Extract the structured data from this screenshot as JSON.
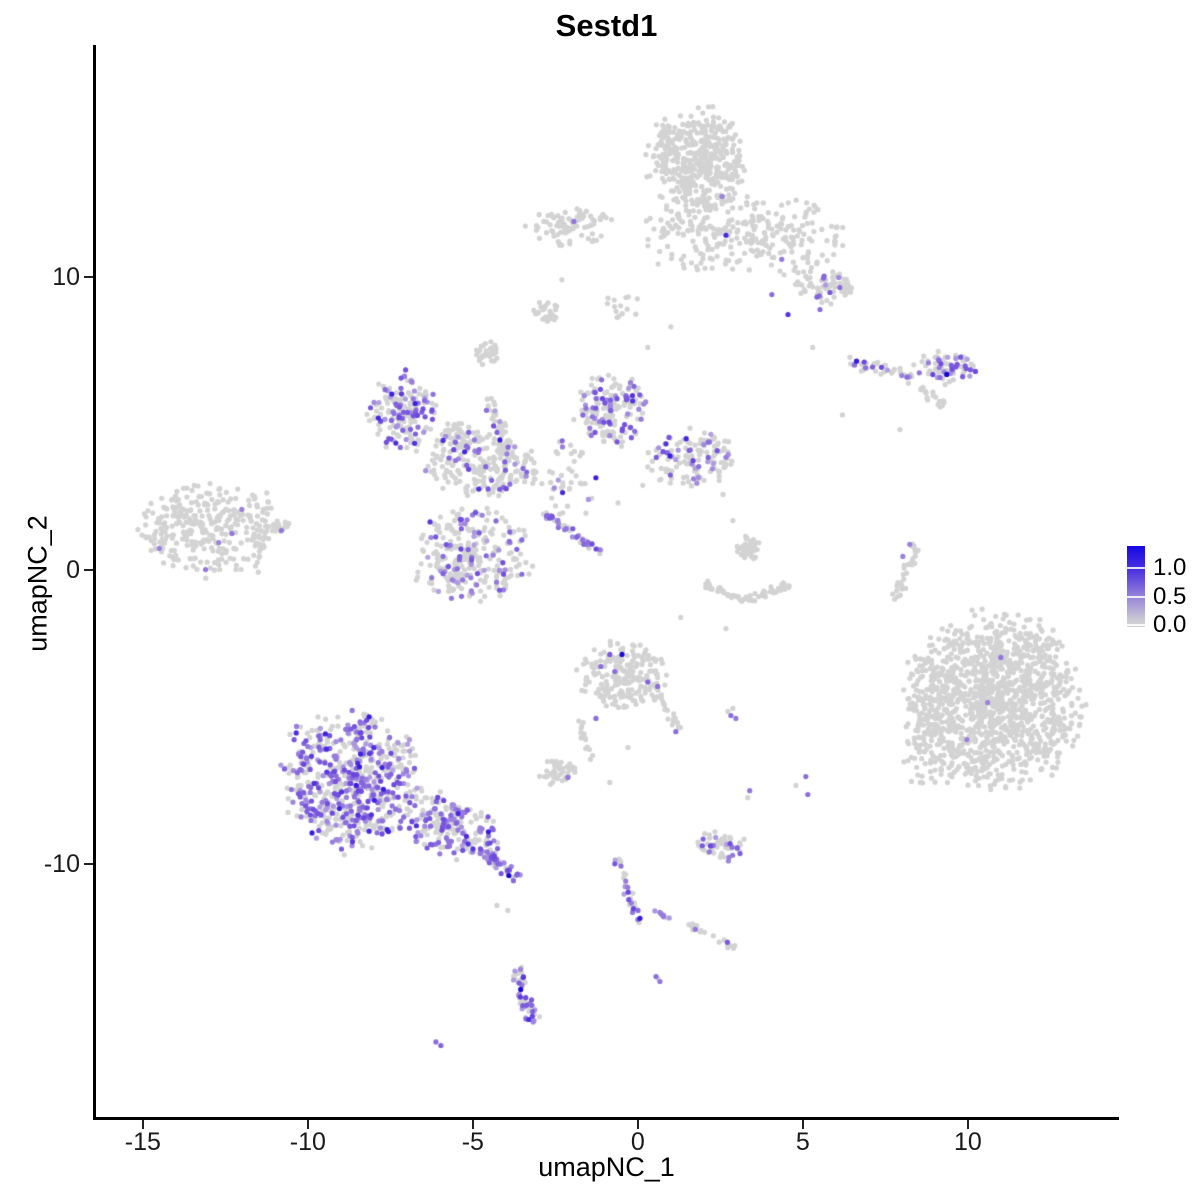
{
  "chart_data": {
    "type": "scatter",
    "title": "Sestd1",
    "xlabel": "umapNC_1",
    "ylabel": "umapNC_2",
    "x_ticks": [
      -15,
      -10,
      -5,
      0,
      5,
      10
    ],
    "y_ticks": [
      -10,
      0,
      10
    ],
    "xlim": [
      -16.45,
      14.55
    ],
    "ylim": [
      -18.65,
      17.9
    ],
    "grid": false,
    "legend": {
      "position": "right",
      "ticks": [
        {
          "label": "1.0",
          "value": 1.0
        },
        {
          "label": "0.5",
          "value": 0.5
        },
        {
          "label": "0.0",
          "value": 0.0
        }
      ]
    },
    "colors": {
      "low": "#D3D3D3",
      "mid": "#8A70D8",
      "high": "#1408E2",
      "background": "#FFFFFF",
      "axis": "#000000"
    },
    "point_radius_px": 2.6,
    "clusters": [
      {
        "name": "top-main",
        "t": "blob",
        "x": 1.82,
        "y": 13.97,
        "rx": 1.45,
        "ry": 1.7,
        "n": 430,
        "f": 0.0
      },
      {
        "name": "top-spread",
        "t": "blob",
        "x": 2.33,
        "y": 11.45,
        "rx": 2.2,
        "ry": 1.35,
        "n": 190,
        "f": 0.0
      },
      {
        "name": "top-left-small",
        "t": "blob",
        "x": -2.0,
        "y": 11.69,
        "rx": 1.35,
        "ry": 0.62,
        "n": 85,
        "f": 0.0
      },
      {
        "name": "top-right-descend",
        "t": "blob",
        "x": 4.76,
        "y": 11.28,
        "rx": 1.5,
        "ry": 1.3,
        "n": 105,
        "f": 0.0
      },
      {
        "name": "top-right-blob",
        "t": "blob",
        "x": 5.67,
        "y": 9.64,
        "rx": 0.95,
        "ry": 0.62,
        "n": 62,
        "f": 0.04
      },
      {
        "name": "midright-arm",
        "t": "strand",
        "x": 7.42,
        "y": 6.85,
        "rx": 1.0,
        "ry": 0.26,
        "a": -17,
        "n": 42,
        "f": 0.3
      },
      {
        "name": "midright-blob",
        "t": "blob",
        "x": 9.3,
        "y": 6.9,
        "rx": 0.95,
        "ry": 0.55,
        "n": 72,
        "f": 0.28
      },
      {
        "name": "midright-tail",
        "t": "strand",
        "x": 8.85,
        "y": 5.96,
        "rx": 0.55,
        "ry": 0.18,
        "a": -36,
        "n": 20,
        "f": 0.0
      },
      {
        "name": "net-nw-wing",
        "t": "blob",
        "x": -7.15,
        "y": 5.42,
        "rx": 1.05,
        "ry": 1.3,
        "n": 170,
        "f": 0.4
      },
      {
        "name": "net-nw-east",
        "t": "blob",
        "x": -5.45,
        "y": 4.53,
        "rx": 0.85,
        "ry": 0.6,
        "n": 55,
        "f": 0.15
      },
      {
        "name": "net-vstrand",
        "t": "strand",
        "x": -4.18,
        "y": 4.8,
        "rx": 1.1,
        "ry": 0.28,
        "a": -75,
        "n": 50,
        "f": 0.18
      },
      {
        "name": "net-central",
        "t": "blob",
        "x": -4.73,
        "y": 3.51,
        "rx": 1.65,
        "ry": 1.0,
        "n": 190,
        "f": 0.12
      },
      {
        "name": "net-north-fan",
        "t": "blob",
        "x": -0.79,
        "y": 5.49,
        "rx": 1.15,
        "ry": 1.2,
        "n": 165,
        "f": 0.28
      },
      {
        "name": "net-east-arm",
        "t": "blob",
        "x": 1.64,
        "y": 3.78,
        "rx": 1.3,
        "ry": 0.95,
        "n": 135,
        "f": 0.22
      },
      {
        "name": "net-sw-lobe",
        "t": "blob",
        "x": -5.03,
        "y": 0.51,
        "rx": 1.75,
        "ry": 1.6,
        "n": 290,
        "f": 0.22
      },
      {
        "name": "net-se-strand",
        "t": "strand",
        "x": -2.0,
        "y": 1.29,
        "rx": 1.1,
        "ry": 0.16,
        "a": -38,
        "n": 48,
        "f": 0.45
      },
      {
        "name": "net-scatter",
        "t": "blob",
        "x": -2.21,
        "y": 3.17,
        "rx": 1.25,
        "ry": 1.35,
        "n": 50,
        "f": 0.08
      },
      {
        "name": "left-cluster",
        "t": "blob",
        "x": -12.91,
        "y": 1.4,
        "rx": 2.15,
        "ry": 1.55,
        "n": 330,
        "f": 0.0
      },
      {
        "name": "left-arm",
        "t": "strand",
        "x": -10.85,
        "y": 1.45,
        "rx": 0.5,
        "ry": 0.12,
        "a": 7,
        "n": 12,
        "f": 0.0
      },
      {
        "name": "right-narrow",
        "t": "strand",
        "x": 8.18,
        "y": 0.03,
        "rx": 1.05,
        "ry": 0.22,
        "a": 72,
        "n": 30,
        "f": 0.0
      },
      {
        "name": "bigright-main",
        "t": "blob",
        "x": 10.82,
        "y": -4.46,
        "rx": 2.55,
        "ry": 2.85,
        "n": 1250,
        "f": 0.0
      },
      {
        "name": "bigright-fringe",
        "t": "blob",
        "x": 8.79,
        "y": -5.35,
        "rx": 0.85,
        "ry": 1.95,
        "n": 95,
        "f": 0.0
      },
      {
        "name": "centerbottom",
        "t": "blob",
        "x": -0.39,
        "y": -3.58,
        "rx": 1.3,
        "ry": 1.15,
        "n": 200,
        "f": 0.0
      },
      {
        "name": "centerbottom-tail",
        "t": "strand",
        "x": 0.91,
        "y": -4.8,
        "rx": 0.6,
        "ry": 0.16,
        "a": -59,
        "n": 20,
        "f": 0.0
      },
      {
        "name": "centerbottom-blob2",
        "t": "blob",
        "x": -2.42,
        "y": -6.88,
        "rx": 0.62,
        "ry": 0.45,
        "n": 42,
        "f": 0.0
      },
      {
        "name": "centerbottom-strand2",
        "t": "strand",
        "x": -1.61,
        "y": -5.66,
        "rx": 0.75,
        "ry": 0.13,
        "a": -75,
        "n": 15,
        "f": 0.0
      },
      {
        "name": "bottomleft-main",
        "t": "blob",
        "x": -8.7,
        "y": -7.12,
        "rx": 2.05,
        "ry": 2.3,
        "n": 640,
        "f": 0.45
      },
      {
        "name": "bottomleft-east",
        "t": "blob",
        "x": -5.7,
        "y": -8.69,
        "rx": 1.6,
        "ry": 0.95,
        "a": -25,
        "n": 215,
        "f": 0.38
      },
      {
        "name": "bottomleft-tail",
        "t": "strand",
        "x": -4.21,
        "y": -9.98,
        "rx": 0.8,
        "ry": 0.22,
        "a": -40,
        "n": 48,
        "f": 0.55
      },
      {
        "name": "bottom-small",
        "t": "blob",
        "x": 2.48,
        "y": -9.37,
        "rx": 0.78,
        "ry": 0.5,
        "n": 55,
        "f": 0.28
      },
      {
        "name": "strand-vert",
        "t": "strand",
        "x": -0.3,
        "y": -10.87,
        "rx": 1.1,
        "ry": 0.18,
        "a": -75,
        "n": 30,
        "f": 0.45
      },
      {
        "name": "strand-horiz",
        "t": "strand",
        "x": 0.73,
        "y": -11.75,
        "rx": 0.33,
        "ry": 0.1,
        "a": -27,
        "n": 8,
        "f": 0.7
      },
      {
        "name": "strand-diag",
        "t": "strand",
        "x": 2.21,
        "y": -12.47,
        "rx": 0.8,
        "ry": 0.16,
        "a": -28,
        "n": 26,
        "f": 0.2
      },
      {
        "name": "bottom-vert",
        "t": "strand",
        "x": -3.45,
        "y": -14.41,
        "rx": 0.95,
        "ry": 0.28,
        "a": -77,
        "n": 46,
        "f": 0.5
      },
      {
        "name": "gray-blob-a",
        "t": "blob",
        "x": -2.82,
        "y": 8.82,
        "rx": 0.4,
        "ry": 0.35,
        "n": 26,
        "f": 0.0
      },
      {
        "name": "gray-blob-b",
        "t": "blob",
        "x": -4.52,
        "y": 7.39,
        "rx": 0.38,
        "ry": 0.5,
        "n": 30,
        "f": 0.0
      },
      {
        "name": "gray-trail",
        "t": "blob",
        "x": -0.55,
        "y": 9.06,
        "rx": 0.6,
        "ry": 0.45,
        "n": 14,
        "f": 0.0
      },
      {
        "name": "smile-blob",
        "t": "blob",
        "x": 3.27,
        "y": 0.75,
        "rx": 0.45,
        "ry": 0.4,
        "n": 40,
        "f": 0.0
      },
      {
        "name": "smile-arc-left",
        "t": "strand",
        "x": 2.64,
        "y": -0.75,
        "rx": 0.7,
        "ry": 0.16,
        "a": -25,
        "n": 34,
        "f": 0.0
      },
      {
        "name": "smile-arc-right",
        "t": "strand",
        "x": 3.9,
        "y": -0.78,
        "rx": 0.7,
        "ry": 0.16,
        "a": 22,
        "n": 34,
        "f": 0.0
      }
    ],
    "highlight_points": [
      {
        "x": 2.55,
        "y": 12.74,
        "v": 0.5
      },
      {
        "x": 2.67,
        "y": 11.42,
        "v": 0.95
      },
      {
        "x": -1.94,
        "y": 11.89,
        "v": 0.55
      },
      {
        "x": 4.36,
        "y": 10.6,
        "v": 0.55
      },
      {
        "x": 4.06,
        "y": 9.4,
        "v": 0.6
      },
      {
        "x": 4.55,
        "y": 8.72,
        "v": 0.9
      },
      {
        "x": 5.52,
        "y": 8.89,
        "v": 0.6
      },
      {
        "x": 5.82,
        "y": 9.47,
        "v": 0.7
      },
      {
        "x": 6.12,
        "y": 9.64,
        "v": 0.6
      },
      {
        "x": 9.36,
        "y": 6.68,
        "v": 1.35
      },
      {
        "x": -14.5,
        "y": 0.75,
        "v": 0.5
      },
      {
        "x": -13.1,
        "y": 0.03,
        "v": 0.55
      },
      {
        "x": -12.7,
        "y": 0.95,
        "v": 0.5
      },
      {
        "x": -12.3,
        "y": 1.26,
        "v": 0.55
      },
      {
        "x": -12.0,
        "y": 2.08,
        "v": 0.5
      },
      {
        "x": -10.8,
        "y": 1.36,
        "v": 0.55
      },
      {
        "x": 8.24,
        "y": 0.89,
        "v": 0.5
      },
      {
        "x": 8.03,
        "y": 0.48,
        "v": 0.5
      },
      {
        "x": 11.0,
        "y": -2.96,
        "v": 0.55
      },
      {
        "x": 10.6,
        "y": -4.5,
        "v": 0.5
      },
      {
        "x": 9.97,
        "y": -5.76,
        "v": 0.5
      },
      {
        "x": -0.48,
        "y": -2.86,
        "v": 1.3
      },
      {
        "x": -0.85,
        "y": -2.86,
        "v": 0.7
      },
      {
        "x": -1.12,
        "y": -3.27,
        "v": 0.6
      },
      {
        "x": -0.7,
        "y": -3.44,
        "v": 0.6
      },
      {
        "x": 0.3,
        "y": -3.8,
        "v": 0.65
      },
      {
        "x": 0.6,
        "y": -3.95,
        "v": 0.6
      },
      {
        "x": 1.15,
        "y": -5.49,
        "v": 0.6
      },
      {
        "x": -2.12,
        "y": -7.05,
        "v": 0.55
      },
      {
        "x": -1.27,
        "y": -5.04,
        "v": 0.6
      },
      {
        "x": -3.91,
        "y": -10.39,
        "v": 1.35
      },
      {
        "x": -3.55,
        "y": -14.27,
        "v": 1.3
      },
      {
        "x": 5.09,
        "y": -7.02,
        "v": 0.6
      },
      {
        "x": 5.15,
        "y": -7.63,
        "v": 0.6
      },
      {
        "x": 3.39,
        "y": -7.5,
        "v": 0.55
      },
      {
        "x": 2.82,
        "y": -4.94,
        "v": 0.6
      },
      {
        "x": 2.97,
        "y": -5.04,
        "v": 0.55
      },
      {
        "x": 0.55,
        "y": -13.83,
        "v": 0.6
      },
      {
        "x": 0.67,
        "y": -14.0,
        "v": 0.55
      },
      {
        "x": -6.12,
        "y": -16.06,
        "v": 0.6
      },
      {
        "x": -5.97,
        "y": -16.18,
        "v": 0.65
      }
    ],
    "single_gray_points": [
      {
        "x": 4.79,
        "y": -7.32
      },
      {
        "x": 3.33,
        "y": -7.74
      },
      {
        "x": 2.73,
        "y": -4.8
      },
      {
        "x": 2.88,
        "y": -4.7
      },
      {
        "x": 7.94,
        "y": 4.8
      },
      {
        "x": -4.27,
        "y": -11.41
      },
      {
        "x": -3.94,
        "y": -11.58
      },
      {
        "x": -0.85,
        "y": -7.22
      },
      {
        "x": -0.3,
        "y": -6.03
      },
      {
        "x": 1.3,
        "y": -1.6
      },
      {
        "x": 2.58,
        "y": 2.59
      },
      {
        "x": 2.88,
        "y": 1.7
      },
      {
        "x": 0.61,
        "y": -13.9
      },
      {
        "x": 5.3,
        "y": 7.6
      },
      {
        "x": 6.2,
        "y": 5.3
      },
      {
        "x": -2.3,
        "y": 9.9
      },
      {
        "x": 1.0,
        "y": 8.3
      },
      {
        "x": 0.3,
        "y": 7.6
      },
      {
        "x": 0.15,
        "y": 2.9
      },
      {
        "x": -0.6,
        "y": 2.3
      },
      {
        "x": 2.67,
        "y": -1.98
      }
    ]
  }
}
